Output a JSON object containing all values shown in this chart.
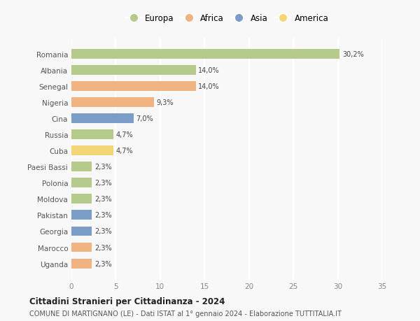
{
  "countries": [
    "Romania",
    "Albania",
    "Senegal",
    "Nigeria",
    "Cina",
    "Russia",
    "Cuba",
    "Paesi Bassi",
    "Polonia",
    "Moldova",
    "Pakistan",
    "Georgia",
    "Marocco",
    "Uganda"
  ],
  "values": [
    30.2,
    14.0,
    14.0,
    9.3,
    7.0,
    4.7,
    4.7,
    2.3,
    2.3,
    2.3,
    2.3,
    2.3,
    2.3,
    2.3
  ],
  "labels": [
    "30,2%",
    "14,0%",
    "14,0%",
    "9,3%",
    "7,0%",
    "4,7%",
    "4,7%",
    "2,3%",
    "2,3%",
    "2,3%",
    "2,3%",
    "2,3%",
    "2,3%",
    "2,3%"
  ],
  "continents": [
    "Europa",
    "Europa",
    "Africa",
    "Africa",
    "Asia",
    "Europa",
    "America",
    "Europa",
    "Europa",
    "Europa",
    "Asia",
    "Asia",
    "Africa",
    "Africa"
  ],
  "colors": {
    "Europa": "#b5cb8b",
    "Africa": "#f0b482",
    "Asia": "#7b9ec9",
    "America": "#f5d57a"
  },
  "legend_order": [
    "Europa",
    "Africa",
    "Asia",
    "America"
  ],
  "xlim": [
    0,
    35
  ],
  "xticks": [
    0,
    5,
    10,
    15,
    20,
    25,
    30,
    35
  ],
  "title": "Cittadini Stranieri per Cittadinanza - 2024",
  "subtitle": "COMUNE DI MARTIGNANO (LE) - Dati ISTAT al 1° gennaio 2024 - Elaborazione TUTTITALIA.IT",
  "bg_color": "#f8f8f8",
  "grid_color": "#ffffff",
  "bar_height": 0.6
}
